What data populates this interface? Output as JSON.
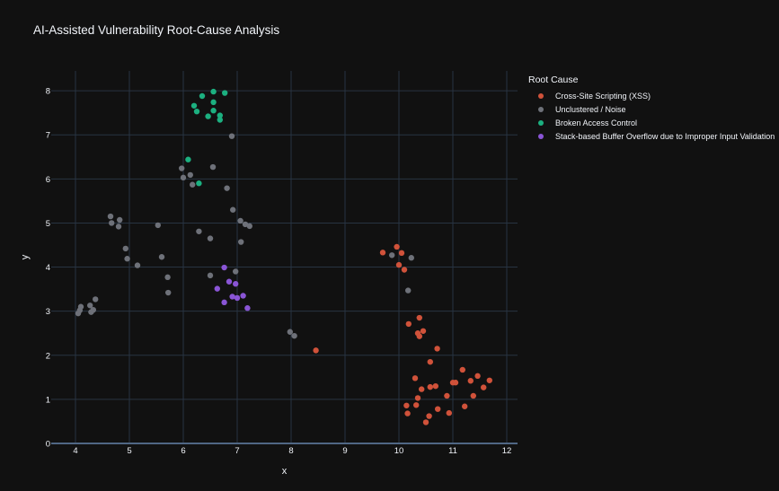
{
  "chart_data": {
    "type": "scatter",
    "title": "AI-Assisted Vulnerability Root-Cause Analysis",
    "xlabel": "x",
    "ylabel": "y",
    "xlim": [
      3.55,
      12.2
    ],
    "ylim": [
      0,
      8.45
    ],
    "xticks": [
      4,
      5,
      6,
      7,
      8,
      9,
      10,
      11,
      12
    ],
    "yticks": [
      0,
      1,
      2,
      3,
      4,
      5,
      6,
      7,
      8
    ],
    "grid": true,
    "legend_title": "Root Cause",
    "legend_position": "top-right",
    "series": [
      {
        "name": "Cross-Site Scripting (XSS)",
        "color": "#d0523a",
        "points": [
          [
            9.7,
            4.33
          ],
          [
            9.96,
            4.46
          ],
          [
            10.05,
            4.32
          ],
          [
            10.0,
            4.05
          ],
          [
            10.1,
            3.94
          ],
          [
            10.18,
            2.71
          ],
          [
            10.38,
            2.85
          ],
          [
            10.45,
            2.55
          ],
          [
            10.35,
            2.5
          ],
          [
            10.38,
            2.43
          ],
          [
            10.71,
            2.15
          ],
          [
            10.58,
            1.85
          ],
          [
            10.3,
            1.48
          ],
          [
            10.42,
            1.23
          ],
          [
            10.35,
            1.03
          ],
          [
            10.14,
            0.86
          ],
          [
            10.16,
            0.68
          ],
          [
            10.32,
            0.87
          ],
          [
            10.5,
            0.48
          ],
          [
            10.56,
            0.62
          ],
          [
            10.58,
            1.28
          ],
          [
            10.68,
            1.3
          ],
          [
            10.72,
            0.78
          ],
          [
            10.89,
            1.08
          ],
          [
            10.93,
            0.69
          ],
          [
            11.0,
            1.38
          ],
          [
            11.05,
            1.38
          ],
          [
            11.18,
            1.67
          ],
          [
            11.22,
            0.84
          ],
          [
            11.33,
            1.42
          ],
          [
            11.38,
            1.08
          ],
          [
            11.46,
            1.53
          ],
          [
            11.57,
            1.27
          ],
          [
            11.68,
            1.43
          ],
          [
            8.46,
            2.11
          ]
        ]
      },
      {
        "name": "Unclustered / Noise",
        "color": "#6e7179",
        "points": [
          [
            4.05,
            2.95
          ],
          [
            4.08,
            3.02
          ],
          [
            4.1,
            3.1
          ],
          [
            4.27,
            3.13
          ],
          [
            4.29,
            2.98
          ],
          [
            4.33,
            3.03
          ],
          [
            4.37,
            3.27
          ],
          [
            4.65,
            5.15
          ],
          [
            4.67,
            5.0
          ],
          [
            4.8,
            4.92
          ],
          [
            4.82,
            5.07
          ],
          [
            4.93,
            4.42
          ],
          [
            4.96,
            4.19
          ],
          [
            5.15,
            4.04
          ],
          [
            5.53,
            4.95
          ],
          [
            5.6,
            4.23
          ],
          [
            5.71,
            3.77
          ],
          [
            5.72,
            3.42
          ],
          [
            5.97,
            6.24
          ],
          [
            6.0,
            6.03
          ],
          [
            6.13,
            6.09
          ],
          [
            6.17,
            5.87
          ],
          [
            6.29,
            4.81
          ],
          [
            6.5,
            3.81
          ],
          [
            6.5,
            4.65
          ],
          [
            6.55,
            6.27
          ],
          [
            6.81,
            5.79
          ],
          [
            6.9,
            6.97
          ],
          [
            6.92,
            5.3
          ],
          [
            6.97,
            3.9
          ],
          [
            7.06,
            5.05
          ],
          [
            7.07,
            4.57
          ],
          [
            7.15,
            4.97
          ],
          [
            7.23,
            4.93
          ],
          [
            7.98,
            2.53
          ],
          [
            8.06,
            2.44
          ],
          [
            9.87,
            4.27
          ],
          [
            10.23,
            4.21
          ],
          [
            10.17,
            3.47
          ]
        ]
      },
      {
        "name": "Broken Access Control",
        "color": "#1cb080",
        "points": [
          [
            6.2,
            7.66
          ],
          [
            6.25,
            7.53
          ],
          [
            6.35,
            7.88
          ],
          [
            6.46,
            7.42
          ],
          [
            6.56,
            7.98
          ],
          [
            6.56,
            7.74
          ],
          [
            6.56,
            7.55
          ],
          [
            6.68,
            7.44
          ],
          [
            6.68,
            7.34
          ],
          [
            6.77,
            7.95
          ],
          [
            6.09,
            6.44
          ],
          [
            6.29,
            5.9
          ]
        ]
      },
      {
        "name": "Stack-based Buffer Overflow due to Improper Input Validation",
        "color": "#8a55d6",
        "points": [
          [
            6.76,
            3.99
          ],
          [
            6.63,
            3.51
          ],
          [
            6.85,
            3.67
          ],
          [
            6.97,
            3.62
          ],
          [
            6.91,
            3.33
          ],
          [
            7.0,
            3.3
          ],
          [
            7.11,
            3.35
          ],
          [
            6.76,
            3.2
          ],
          [
            7.19,
            3.07
          ]
        ]
      }
    ]
  }
}
